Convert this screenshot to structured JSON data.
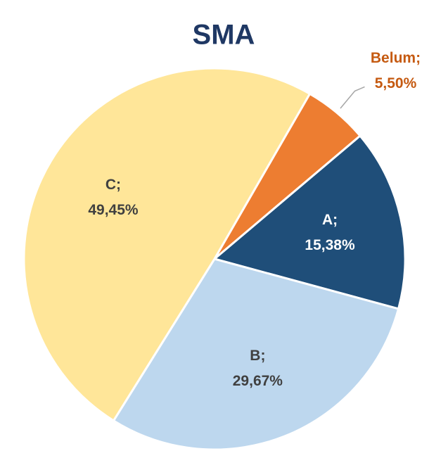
{
  "chart_data": {
    "type": "pie",
    "title": "SMA",
    "categories": [
      "Belum;",
      "A;",
      "B;",
      "C;"
    ],
    "values": [
      5.5,
      15.38,
      29.67,
      49.45
    ],
    "value_labels": [
      "5,50%",
      "15,38%",
      "29,67%",
      "49,45%"
    ],
    "colors": [
      "#ed7d31",
      "#1f4e79",
      "#bdd7ee",
      "#ffe699"
    ]
  }
}
